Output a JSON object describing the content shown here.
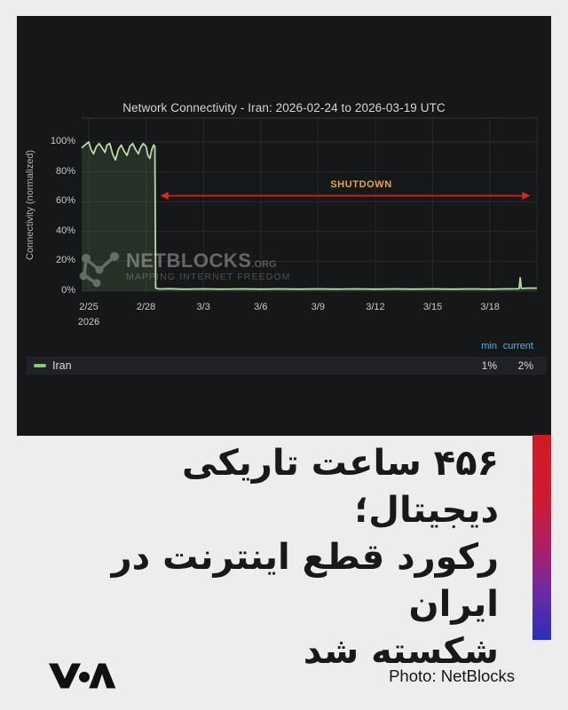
{
  "chart_data": {
    "type": "area",
    "title": "Network Connectivity - Iran: 2026-02-24 to 2026-03-19 UTC",
    "ylabel": "Connectivity (normalized)",
    "xlabel": "",
    "x_unit": "days since 2/25 00:00 UTC",
    "x_ticks": [
      "2/25",
      "2/28",
      "3/3",
      "3/6",
      "3/9",
      "3/12",
      "3/15",
      "3/18"
    ],
    "x_tick_days": [
      0,
      3,
      6,
      9,
      12,
      15,
      18,
      21
    ],
    "x_year_label": "2026",
    "y_ticks": [
      "0%",
      "20%",
      "40%",
      "60%",
      "80%",
      "100%"
    ],
    "y_tick_values": [
      0,
      20,
      40,
      60,
      80,
      100
    ],
    "ylim": [
      0,
      116
    ],
    "xlim": [
      -0.37,
      23.45
    ],
    "grid": true,
    "legend_position": "bottom",
    "series": [
      {
        "name": "Iran",
        "color": "#b7dba4",
        "fill_color": "rgba(126,178,109,0.16)",
        "points": [
          [
            -0.37,
            96
          ],
          [
            -0.2,
            98
          ],
          [
            0,
            100
          ],
          [
            0.12,
            95
          ],
          [
            0.25,
            92
          ],
          [
            0.4,
            97
          ],
          [
            0.55,
            99
          ],
          [
            0.7,
            96
          ],
          [
            0.85,
            93
          ],
          [
            0.95,
            98
          ],
          [
            1.1,
            99
          ],
          [
            1.25,
            92
          ],
          [
            1.4,
            88
          ],
          [
            1.55,
            95
          ],
          [
            1.7,
            98
          ],
          [
            1.85,
            94
          ],
          [
            2,
            91
          ],
          [
            2.15,
            97
          ],
          [
            2.3,
            99
          ],
          [
            2.45,
            95
          ],
          [
            2.6,
            92
          ],
          [
            2.7,
            96
          ],
          [
            2.85,
            99
          ],
          [
            3,
            97
          ],
          [
            3.1,
            91
          ],
          [
            3.2,
            89
          ],
          [
            3.3,
            95
          ],
          [
            3.4,
            98
          ],
          [
            3.46,
            97
          ],
          [
            3.5,
            2
          ],
          [
            3.7,
            1.4
          ],
          [
            4.2,
            1.6
          ],
          [
            5,
            1.3
          ],
          [
            6,
            1.5
          ],
          [
            7,
            1.3
          ],
          [
            8,
            1.5
          ],
          [
            9,
            1.3
          ],
          [
            10,
            1.5
          ],
          [
            11,
            1.3
          ],
          [
            12,
            1.5
          ],
          [
            13,
            1.3
          ],
          [
            14,
            1.5
          ],
          [
            15,
            1.3
          ],
          [
            16,
            1.5
          ],
          [
            17,
            1.3
          ],
          [
            18,
            1.5
          ],
          [
            19,
            1.3
          ],
          [
            20,
            1.5
          ],
          [
            21,
            1.3
          ],
          [
            21.8,
            1.5
          ],
          [
            22.3,
            1.5
          ],
          [
            22.52,
            1.6
          ],
          [
            22.58,
            9
          ],
          [
            22.64,
            1.8
          ],
          [
            23,
            2
          ],
          [
            23.45,
            2
          ]
        ]
      }
    ],
    "annotation": {
      "label": "SHUTDOWN",
      "label_color": "#e9a43c",
      "x1": 3.75,
      "x2": 23.1,
      "y": 64,
      "arrow_color": "#c42015"
    },
    "legend": {
      "columns": [
        "min",
        "current"
      ],
      "rows": [
        {
          "name": "Iran",
          "min": "1%",
          "current": "2%"
        }
      ]
    },
    "colors": {
      "panel_bg": "#161719",
      "grid": "rgba(255,255,255,0.07)",
      "top_border": "rgba(255,255,255,0.13)"
    }
  },
  "watermark": {
    "brand": "NETBLOCKS",
    "suffix": ".ORG",
    "tagline": "MAPPING INTERNET FREEDOM"
  },
  "headline": {
    "line1": "۴۵۶ ساعت تاریکی دیجیتال؛",
    "line2": "رکورد قطع اینترنت در ایران",
    "line3": "شکسته شد"
  },
  "footer": {
    "photo_credit": "Photo: NetBlocks",
    "logo": "VOA"
  }
}
